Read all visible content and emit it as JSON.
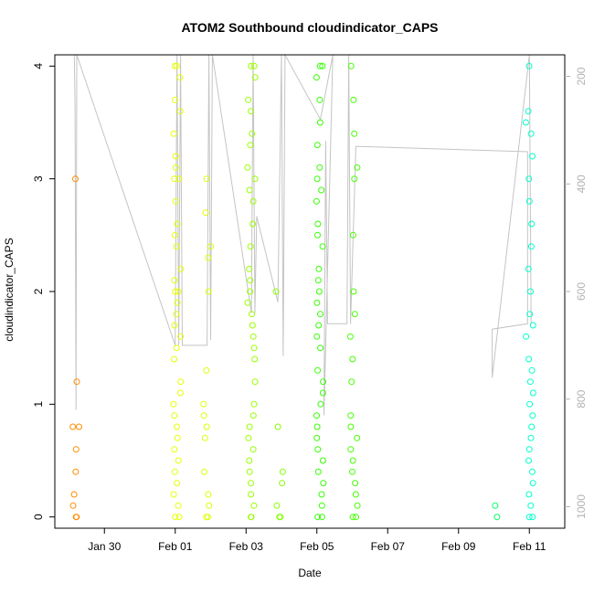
{
  "chart_data": {
    "type": "scatter",
    "title": "ATOM2 Southbound cloudindicator_CAPS",
    "xlabel": "Date",
    "ylabel": "cloudindicator_CAPS",
    "x_tick_labels": [
      "Jan 30",
      "Feb 01",
      "Feb 03",
      "Feb 05",
      "Feb 07",
      "Feb 09",
      "Feb 11"
    ],
    "x_tick_days": [
      30,
      32,
      34,
      36,
      38,
      40,
      42
    ],
    "xlim_days": [
      28.6,
      43.0
    ],
    "y_ticks": [
      0,
      1,
      2,
      3,
      4
    ],
    "ylim": [
      -0.1,
      4.1
    ],
    "y2_tick_labels": [
      "200",
      "400",
      "600",
      "800",
      "1000"
    ],
    "y2_ticks": [
      200,
      400,
      600,
      800,
      1000
    ],
    "y2lim": [
      1040,
      160
    ],
    "grid": false,
    "legend": "none",
    "point_marker": "open-circle",
    "colors": {
      "line": "#c4c4c4",
      "axis": "#000000",
      "right_axis": "#b3b3b3",
      "clusters": [
        "#ff8c00",
        "#ffd700",
        "#ffff00",
        "#e6ff00",
        "#99ff00",
        "#66ff00",
        "#33ff00",
        "#00ff55",
        "#00ffcc"
      ]
    },
    "series": [
      {
        "day": 29.2,
        "color": "#ff8c00",
        "values": [
          0,
          0,
          0.1,
          0.2,
          0.4,
          0.6,
          0.8,
          0.8,
          1.2,
          3.0
        ]
      },
      {
        "day": 32.05,
        "color": "#e6ff00",
        "values": [
          0,
          0,
          0.1,
          0.2,
          0.3,
          0.4,
          0.5,
          0.6,
          0.7,
          0.8,
          0.9,
          1.0,
          1.1,
          1.2,
          1.4,
          1.5,
          1.6,
          1.7,
          1.8,
          1.9,
          2.0,
          2.0,
          2.1,
          2.2,
          2.4,
          2.5,
          2.6,
          2.8,
          3.0,
          3.0,
          3.1,
          3.2,
          3.4,
          3.6,
          3.7,
          3.9,
          4.0,
          4.0
        ]
      },
      {
        "day": 32.9,
        "color": "#ddff00",
        "values": [
          0,
          0,
          0.1,
          0.2,
          0.4,
          0.7,
          0.8,
          0.9,
          1.0,
          1.3,
          2.0,
          2.3,
          2.4,
          2.7,
          3.0
        ]
      },
      {
        "day": 34.15,
        "color": "#99ff00",
        "values": [
          0,
          0,
          0.1,
          0.2,
          0.3,
          0.4,
          0.5,
          0.6,
          0.7,
          0.8,
          0.9,
          1.0,
          1.2,
          1.4,
          1.5,
          1.6,
          1.7,
          1.8,
          1.9,
          2.0,
          2.1,
          2.2,
          2.4,
          2.6,
          2.8,
          2.9,
          3.0,
          3.1,
          3.3,
          3.4,
          3.6,
          3.7,
          3.9,
          4.0,
          4.0
        ]
      },
      {
        "day": 34.95,
        "color": "#88ff00",
        "values": [
          0,
          0,
          0.1,
          0.3,
          0.4,
          0.8,
          2.0
        ]
      },
      {
        "day": 36.1,
        "color": "#33ff00",
        "values": [
          0,
          0,
          0.1,
          0.2,
          0.3,
          0.4,
          0.5,
          0.6,
          0.7,
          0.8,
          0.9,
          1.0,
          1.1,
          1.2,
          1.3,
          1.5,
          1.6,
          1.7,
          1.8,
          1.9,
          2.0,
          2.1,
          2.2,
          2.4,
          2.5,
          2.6,
          2.8,
          2.9,
          3.0,
          3.1,
          3.3,
          3.5,
          3.7,
          3.9,
          4.0,
          4.0
        ]
      },
      {
        "day": 37.05,
        "color": "#44ff00",
        "values": [
          0,
          0,
          0.1,
          0.2,
          0.3,
          0.4,
          0.5,
          0.6,
          0.7,
          0.8,
          0.9,
          1.2,
          1.4,
          1.6,
          1.8,
          2.0,
          2.5,
          3.0,
          3.1,
          3.4,
          3.7,
          4.0
        ]
      },
      {
        "day": 41.0,
        "color": "#00ff66",
        "values": [
          0,
          0.1
        ]
      },
      {
        "day": 42.0,
        "color": "#00ffcc",
        "values": [
          0,
          0,
          0.1,
          0.2,
          0.3,
          0.4,
          0.5,
          0.6,
          0.7,
          0.8,
          0.9,
          1.0,
          1.1,
          1.2,
          1.3,
          1.4,
          1.6,
          1.7,
          1.8,
          2.0,
          2.2,
          2.4,
          2.6,
          2.8,
          3.0,
          3.2,
          3.4,
          3.5,
          3.6,
          4.0
        ]
      }
    ],
    "depth_track": {
      "axis": "right",
      "points": [
        [
          29.15,
          160
        ],
        [
          29.17,
          250
        ],
        [
          29.2,
          820
        ],
        [
          29.22,
          160
        ],
        [
          32.0,
          700
        ],
        [
          32.05,
          160
        ],
        [
          32.1,
          700
        ],
        [
          32.15,
          160
        ],
        [
          32.2,
          700
        ],
        [
          32.9,
          700
        ],
        [
          32.95,
          160
        ],
        [
          33.0,
          690
        ],
        [
          33.05,
          160
        ],
        [
          34.15,
          640
        ],
        [
          34.2,
          160
        ],
        [
          34.25,
          640
        ],
        [
          34.3,
          460
        ],
        [
          34.9,
          620
        ],
        [
          35.0,
          160
        ],
        [
          35.05,
          720
        ],
        [
          35.1,
          160
        ],
        [
          36.1,
          280
        ],
        [
          36.45,
          160
        ],
        [
          36.2,
          830
        ],
        [
          36.25,
          320
        ],
        [
          36.3,
          660
        ],
        [
          36.85,
          660
        ],
        [
          36.9,
          160
        ],
        [
          36.95,
          660
        ],
        [
          37.1,
          330
        ],
        [
          41.95,
          340
        ],
        [
          41.95,
          660
        ],
        [
          40.95,
          670
        ],
        [
          40.95,
          760
        ],
        [
          42.0,
          160
        ],
        [
          42.05,
          660
        ]
      ]
    }
  }
}
